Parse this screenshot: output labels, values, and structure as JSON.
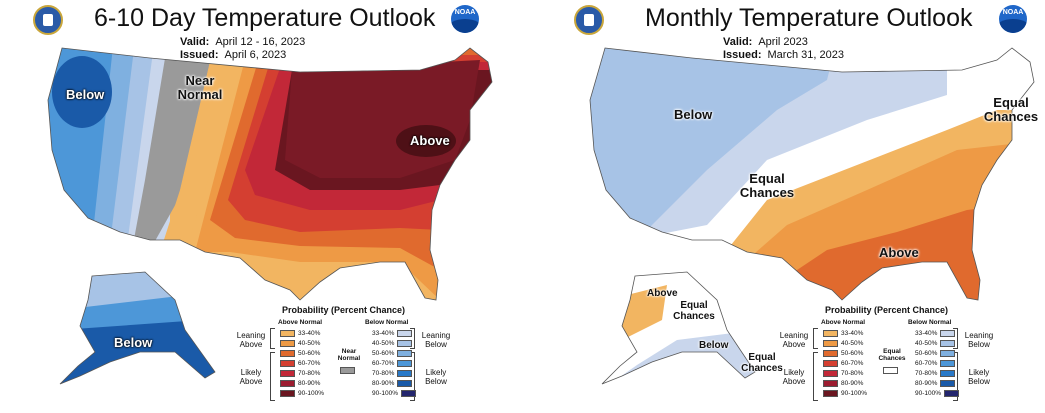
{
  "left": {
    "title": "6-10 Day Temperature Outlook",
    "valid_label": "Valid:",
    "valid_value": "April 12 - 16, 2023",
    "issued_label": "Issued:",
    "issued_value": "April 6, 2023",
    "noaa_text": "NOAA",
    "map_labels": {
      "below_west": "Below",
      "near_normal": "Near Normal",
      "above_ne": "Above",
      "below_alaska": "Below"
    },
    "legend": {
      "title": "Probability (Percent Chance)",
      "above_head": "Above Normal",
      "below_head": "Below Normal",
      "near_head": "Near Normal",
      "leaning_above": "Leaning Above",
      "likely_above": "Likely Above",
      "leaning_below": "Leaning Below",
      "likely_below": "Likely Below",
      "ranges": [
        "33-40%",
        "40-50%",
        "50-60%",
        "60-70%",
        "70-80%",
        "80-90%",
        "90-100%"
      ]
    }
  },
  "right": {
    "title": "Monthly Temperature Outlook",
    "valid_label": "Valid:",
    "valid_value": "April 2023",
    "issued_label": "Issued:",
    "issued_value": "March 31, 2023",
    "noaa_text": "NOAA",
    "map_labels": {
      "below": "Below",
      "equal_center": "Equal Chances",
      "equal_ne": "Equal Chances",
      "above": "Above",
      "above_alaska": "Above",
      "equal_alaska": "Equal Chances",
      "below_alaska": "Below",
      "equal_aleutians": "Equal Chances"
    },
    "legend": {
      "title": "Probability (Percent Chance)",
      "above_head": "Above Normal",
      "below_head": "Below Normal",
      "equal_head": "Equal Chances",
      "leaning_above": "Leaning Above",
      "likely_above": "Likely Above",
      "leaning_below": "Leaning Below",
      "likely_below": "Likely Below",
      "ranges": [
        "33-40%",
        "40-50%",
        "50-60%",
        "60-70%",
        "70-80%",
        "80-90%",
        "90-100%"
      ]
    }
  },
  "colors": {
    "above": [
      "#f2b561",
      "#ee9a45",
      "#e06a2e",
      "#d43f31",
      "#c22838",
      "#9c1c30",
      "#6a1620"
    ],
    "below": [
      "#c9d6ec",
      "#a7c3e6",
      "#7fb0e0",
      "#4d97d8",
      "#2979c8",
      "#1a5aa8",
      "#23266e"
    ],
    "near_normal": "#9a9a9a",
    "equal_chances": "#ffffff"
  }
}
